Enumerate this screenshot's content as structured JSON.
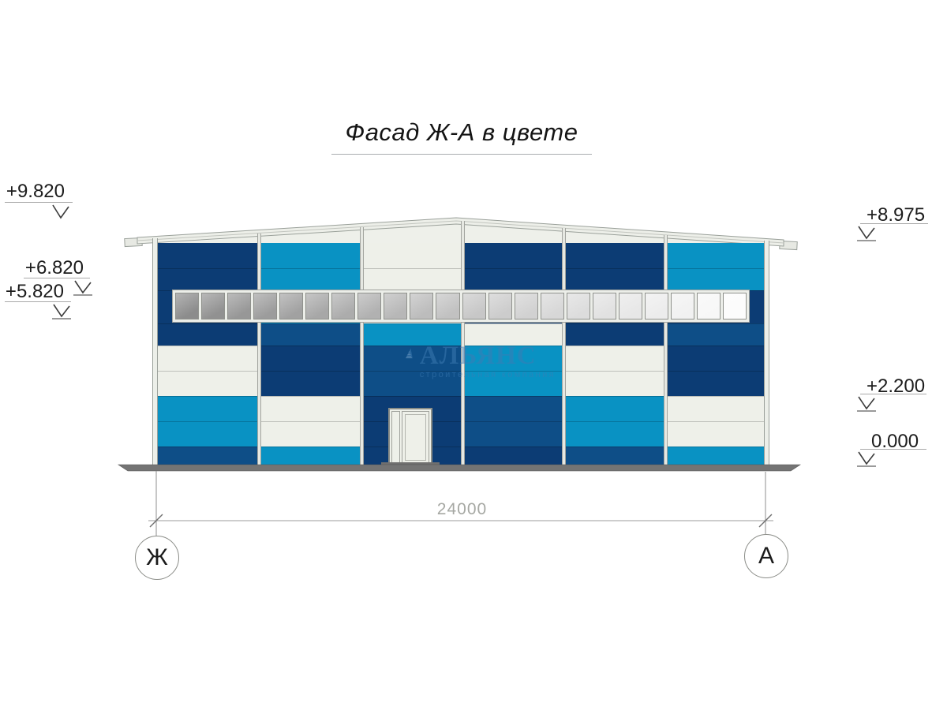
{
  "title": {
    "text": "Фасад Ж-А в цвете"
  },
  "levels": {
    "left": [
      {
        "label": "+9.820"
      },
      {
        "label": "+6.820"
      },
      {
        "label": "+5.820"
      }
    ],
    "right": [
      {
        "label": "+8.975"
      },
      {
        "label": "+2.200"
      },
      {
        "label": "0.000"
      }
    ]
  },
  "dimension": {
    "value": "24000"
  },
  "axes": {
    "left": {
      "label": "Ж"
    },
    "right": {
      "label": "А"
    }
  },
  "watermark": {
    "brand": "АЛЬЯНС",
    "subtitle": "строительная компания"
  },
  "palette": {
    "navy": "#0c3c74",
    "blue": "#0e4e87",
    "cyan": "#0992c3",
    "white": "#eef0e9"
  },
  "facade": {
    "window_row": [
      "navy",
      "cyan",
      "white",
      "navy",
      "navy",
      "navy"
    ],
    "bays": [
      {
        "rows": [
          "navy",
          "navy",
          "navy",
          "white",
          "white",
          "cyan",
          "cyan",
          "blue"
        ]
      },
      {
        "rows": [
          "cyan",
          "cyan",
          "blue",
          "navy",
          "navy",
          "white",
          "white",
          "cyan"
        ]
      },
      {
        "rows": [
          "white",
          "white",
          "cyan",
          "blue",
          "blue",
          "navy",
          "navy",
          "navy"
        ]
      },
      {
        "rows": [
          "navy",
          "navy",
          "white",
          "cyan",
          "cyan",
          "blue",
          "blue",
          "navy"
        ]
      },
      {
        "rows": [
          "navy",
          "navy",
          "navy",
          "white",
          "white",
          "cyan",
          "cyan",
          "blue"
        ]
      },
      {
        "rows": [
          "cyan",
          "cyan",
          "blue",
          "navy",
          "navy",
          "white",
          "white",
          "cyan"
        ]
      }
    ]
  },
  "window_band": {
    "pane_count": 22,
    "from": "#8c8c8c",
    "to": "#fcfcfc"
  }
}
